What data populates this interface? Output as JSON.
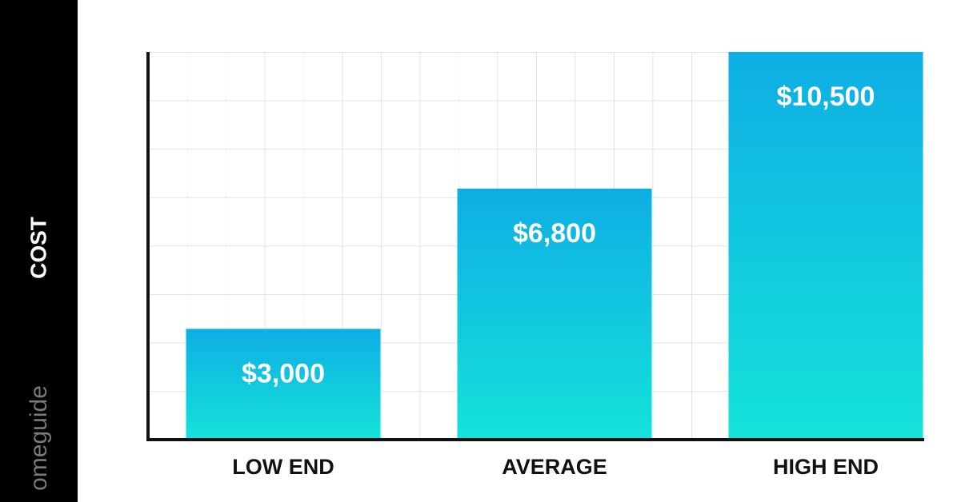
{
  "chart_data": {
    "type": "bar",
    "y_axis_label": "COST",
    "watermark": "omeguide",
    "categories": [
      "LOW END",
      "AVERAGE",
      "HIGH END"
    ],
    "values": [
      3000,
      6800,
      10500
    ],
    "value_labels": [
      "$3,000",
      "$6,800",
      "$10,500"
    ],
    "gradient": [
      "#0eaee4",
      "#15e2da"
    ],
    "ylim": [
      0,
      10500
    ]
  }
}
